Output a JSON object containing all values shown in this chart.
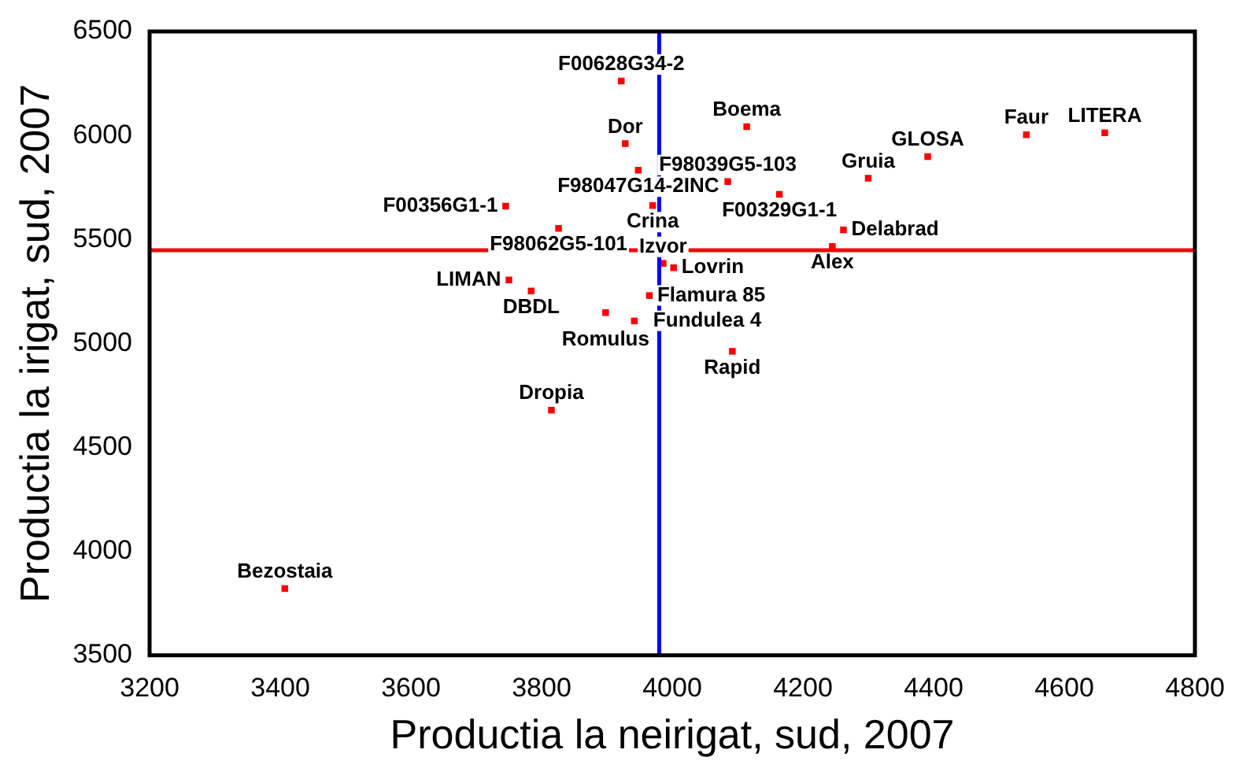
{
  "chart_data": {
    "type": "scatter",
    "xlabel": "Productia la neirigat, sud, 2007",
    "ylabel": "Productia la irigat, sud, 2007",
    "x": [
      3922,
      4114,
      3928,
      3948,
      4085,
      4300,
      4164,
      3745,
      3970,
      3826,
      4262,
      4245,
      3986,
      4002,
      3750,
      3784,
      3898,
      3965,
      3942,
      4092,
      3815,
      3407,
      4391,
      4542,
      4662
    ],
    "series": [
      {
        "color": "#ff0000",
        "values": [
          6262,
          6042,
          5961,
          5833,
          5778,
          5794,
          5717,
          5660,
          5663,
          5553,
          5546,
          5466,
          5385,
          5364,
          5305,
          5252,
          5148,
          5230,
          5108,
          4962,
          4679,
          3821,
          5898,
          6003,
          6013
        ],
        "value_labels": [
          "F00628G34-2",
          "Boema",
          "Dor",
          "F98047G14-2INC",
          "F98039G5-103",
          "Gruia",
          "F00329G1-1",
          "F00356G1-1",
          "Crina",
          "F98062G5-101",
          "Delabrad",
          "Alex",
          "Izvor",
          "Lovrin",
          "LIMAN",
          "DBDL",
          "Romulus",
          "Flamura 85",
          "Fundulea 4",
          "Rapid",
          "Dropia",
          "Bezostaia",
          "GLOSA",
          "Faur",
          "LITERA"
        ]
      }
    ],
    "xlim": [
      3200,
      4800
    ],
    "xticks": [
      3200,
      3400,
      3600,
      3800,
      4000,
      4200,
      4400,
      4600,
      4800
    ],
    "ylim": [
      3500,
      6500
    ],
    "yticks": [
      3500,
      4000,
      4500,
      5000,
      5500,
      6000,
      6500
    ],
    "ref_lines": [
      {
        "axis": "y",
        "value": 5448,
        "color": "#ff0000"
      },
      {
        "axis": "x",
        "value": 3980,
        "color": "#0000ff"
      }
    ],
    "grid": false,
    "legend": false,
    "marker": "square"
  }
}
